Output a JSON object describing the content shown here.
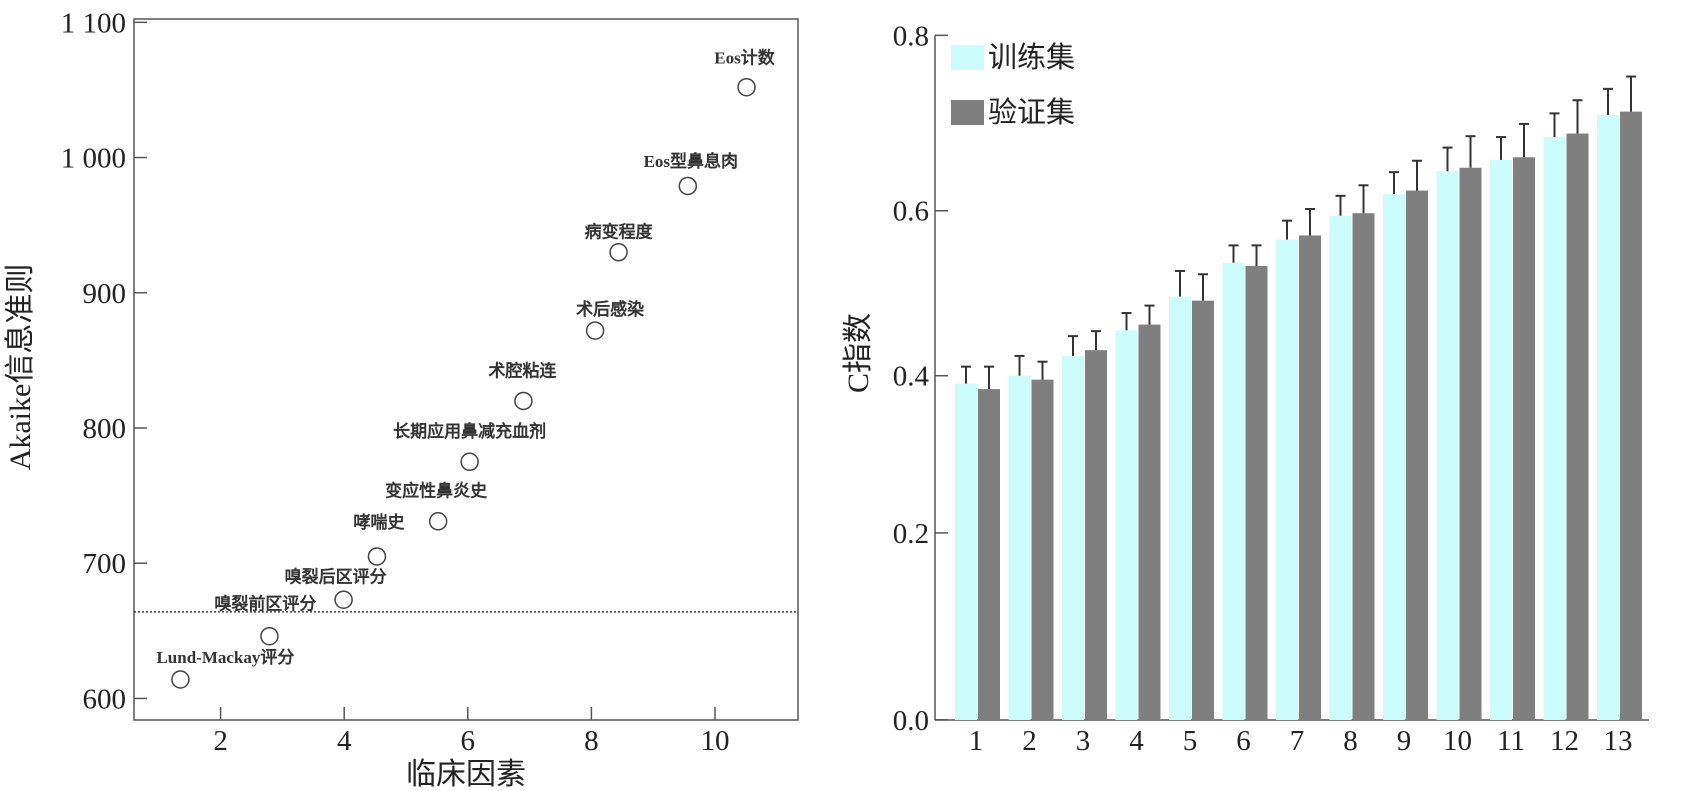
{
  "chart_data": [
    {
      "type": "scatter",
      "xlabel": "临床因素",
      "ylabel": "Akaike信息准则",
      "xlim": [
        0.6,
        11.34
      ],
      "ylim": [
        585,
        1107
      ],
      "xticks": [
        2,
        4,
        6,
        8,
        10
      ],
      "xtick_labels": [
        "2",
        "4",
        "6",
        "8",
        "10"
      ],
      "yticks": [
        600,
        700,
        800,
        900,
        1000,
        1100
      ],
      "ytick_labels": [
        "600",
        "700",
        "800",
        "900",
        "1 000",
        "1 100"
      ],
      "reference_line_y": 664,
      "points": [
        {
          "x": 1.35,
          "y": 614,
          "label": "Lund-Mackay评分"
        },
        {
          "x": 2.79,
          "y": 646,
          "label": "嗅裂前区评分"
        },
        {
          "x": 3.99,
          "y": 673,
          "label": "嗅裂后区评分"
        },
        {
          "x": 4.53,
          "y": 705,
          "label": "哮喘史"
        },
        {
          "x": 5.52,
          "y": 731,
          "label": "变应性鼻炎史"
        },
        {
          "x": 6.03,
          "y": 775,
          "label": "长期应用鼻减充血剂"
        },
        {
          "x": 6.9,
          "y": 820,
          "label": "术腔粘连"
        },
        {
          "x": 8.06,
          "y": 872,
          "label": "术后感染"
        },
        {
          "x": 8.44,
          "y": 930,
          "label": "病变程度"
        },
        {
          "x": 9.56,
          "y": 979,
          "label": "Eos型鼻息肉"
        },
        {
          "x": 10.51,
          "y": 1052,
          "label": "Eos计数"
        }
      ]
    },
    {
      "type": "bar",
      "xlabel": "",
      "ylabel": "C指数",
      "ylim": [
        0,
        0.8
      ],
      "yticks": [
        0,
        0.2,
        0.4,
        0.6,
        0.8
      ],
      "ytick_labels": [
        "0.0",
        "0.2",
        "0.4",
        "0.6",
        "0.8"
      ],
      "categories": [
        "1",
        "2",
        "3",
        "4",
        "5",
        "6",
        "7",
        "8",
        "9",
        "10",
        "11",
        "12",
        "13"
      ],
      "legend_position": "top-left",
      "series": [
        {
          "name": "训练集",
          "color": "#ccfcfc",
          "values": [
            0.39,
            0.4,
            0.424,
            0.455,
            0.496,
            0.537,
            0.565,
            0.594,
            0.619,
            0.645,
            0.658,
            0.684,
            0.709
          ],
          "error_upper": [
            0.411,
            0.424,
            0.448,
            0.476,
            0.527,
            0.558,
            0.588,
            0.617,
            0.644,
            0.672,
            0.684,
            0.711,
            0.739
          ]
        },
        {
          "name": "验证集",
          "color": "#7f7f7f",
          "values": [
            0.383,
            0.395,
            0.431,
            0.462,
            0.491,
            0.533,
            0.57,
            0.597,
            0.623,
            0.649,
            0.661,
            0.688,
            0.713
          ],
          "error_upper": [
            0.411,
            0.417,
            0.454,
            0.485,
            0.523,
            0.558,
            0.602,
            0.629,
            0.657,
            0.685,
            0.699,
            0.726,
            0.753
          ]
        }
      ]
    }
  ]
}
